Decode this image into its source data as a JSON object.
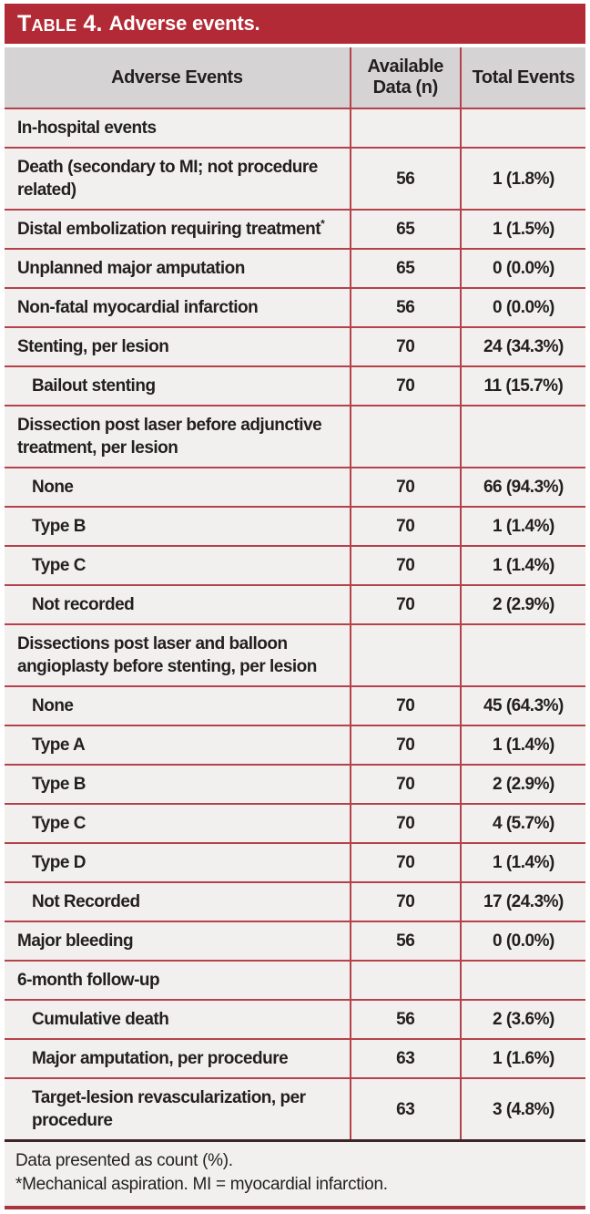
{
  "title": {
    "label": "Table 4.",
    "text": "Adverse events."
  },
  "columns": [
    "Adverse Events",
    "Available Data (n)",
    "Total Events"
  ],
  "rows": [
    {
      "label": "In-hospital events",
      "n": "",
      "events": "",
      "indent": false
    },
    {
      "label": "Death (secondary to MI; not procedure related)",
      "n": "56",
      "events": "1 (1.8%)",
      "indent": false
    },
    {
      "label": "Distal embolization requiring treatment",
      "sup": "*",
      "n": "65",
      "events": "1 (1.5%)",
      "indent": false
    },
    {
      "label": "Unplanned major amputation",
      "n": "65",
      "events": "0 (0.0%)",
      "indent": false
    },
    {
      "label": "Non-fatal myocardial infarction",
      "n": "56",
      "events": "0 (0.0%)",
      "indent": false
    },
    {
      "label": "Stenting, per lesion",
      "n": "70",
      "events": "24 (34.3%)",
      "indent": false
    },
    {
      "label": "Bailout stenting",
      "n": "70",
      "events": "11 (15.7%)",
      "indent": true
    },
    {
      "label": "Dissection post laser before adjunctive treatment, per lesion",
      "n": "",
      "events": "",
      "indent": false
    },
    {
      "label": "None",
      "n": "70",
      "events": "66 (94.3%)",
      "indent": true
    },
    {
      "label": "Type B",
      "n": "70",
      "events": "1 (1.4%)",
      "indent": true
    },
    {
      "label": "Type C",
      "n": "70",
      "events": "1 (1.4%)",
      "indent": true
    },
    {
      "label": "Not recorded",
      "n": "70",
      "events": "2 (2.9%)",
      "indent": true
    },
    {
      "label": "Dissections post laser and balloon angioplasty before stenting, per lesion",
      "n": "",
      "events": "",
      "indent": false
    },
    {
      "label": "None",
      "n": "70",
      "events": "45 (64.3%)",
      "indent": true
    },
    {
      "label": "Type A",
      "n": "70",
      "events": "1 (1.4%)",
      "indent": true
    },
    {
      "label": "Type B",
      "n": "70",
      "events": "2 (2.9%)",
      "indent": true
    },
    {
      "label": "Type C",
      "n": "70",
      "events": "4 (5.7%)",
      "indent": true
    },
    {
      "label": "Type D",
      "n": "70",
      "events": "1 (1.4%)",
      "indent": true
    },
    {
      "label": "Not Recorded",
      "n": "70",
      "events": "17 (24.3%)",
      "indent": true
    },
    {
      "label": "Major bleeding",
      "n": "56",
      "events": "0 (0.0%)",
      "indent": false
    },
    {
      "label": "6-month follow-up",
      "n": "",
      "events": "",
      "indent": false
    },
    {
      "label": "Cumulative death",
      "n": "56",
      "events": "2 (3.6%)",
      "indent": true
    },
    {
      "label": "Major amputation, per procedure",
      "n": "63",
      "events": "1 (1.6%)",
      "indent": true
    },
    {
      "label": "Target-lesion revascularization, per procedure",
      "n": "63",
      "events": "3 (4.8%)",
      "indent": true
    }
  ],
  "footnotes": [
    "Data presented as count (%).",
    "*Mechanical aspiration. MI = myocardial infarction."
  ],
  "colors": {
    "title_bar": "#b22a35",
    "header_bg": "#d5d3d3",
    "body_bg": "#f2f0ef",
    "rule_red": "#b5424b",
    "footer_rule_dark": "#3c2427",
    "text": "#231f20",
    "title_text": "#ffffff"
  }
}
